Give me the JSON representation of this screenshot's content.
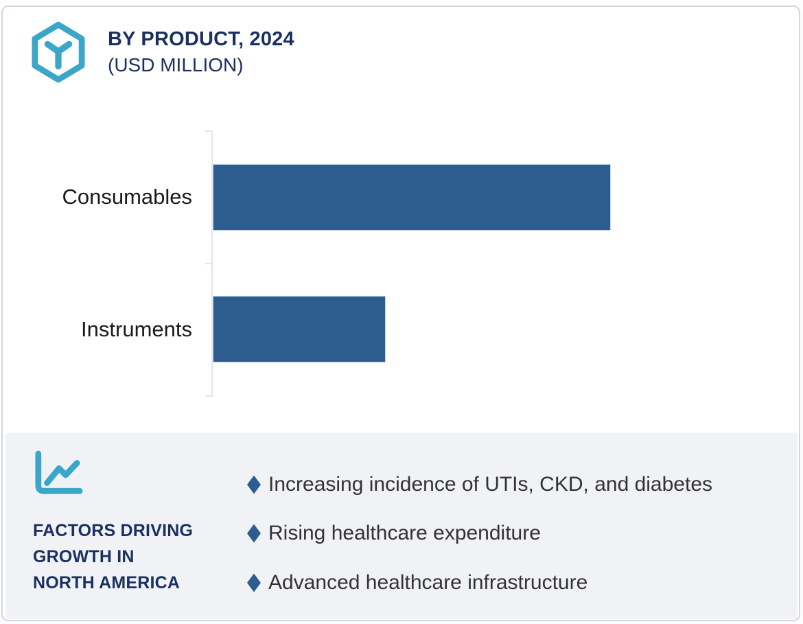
{
  "header": {
    "title": "BY PRODUCT, 2024",
    "subtitle": "(USD MILLION)",
    "logo_icon": "hexagon-cube-icon",
    "accent_color": "#3aa7c9",
    "title_color": "#1a3160"
  },
  "chart_data": {
    "type": "bar",
    "orientation": "horizontal",
    "title": "BY PRODUCT, 2024",
    "units": "USD Million",
    "categories": [
      "Consumables",
      "Instruments"
    ],
    "values_pct_of_max": [
      100,
      43.2
    ],
    "series": [
      {
        "name": "2024",
        "values_pct_of_max": [
          100,
          43.2
        ]
      }
    ],
    "value_labels_shown": false,
    "axis_tick_labels_shown": false,
    "gridlines": false,
    "legend_position": "none",
    "bar_color": "#2d5d8e",
    "axis_color": "#e4e5e7"
  },
  "factors_panel": {
    "icon": "line-chart-icon",
    "heading": "FACTORS DRIVING\nGROWTH IN\nNORTH AMERICA",
    "bullets": [
      "Increasing incidence of UTIs, CKD, and diabetes",
      "Rising healthcare expenditure",
      "Advanced healthcare infrastructure"
    ],
    "bullet_color": "#2d5d8e",
    "background_color": "#f1f2f6"
  }
}
